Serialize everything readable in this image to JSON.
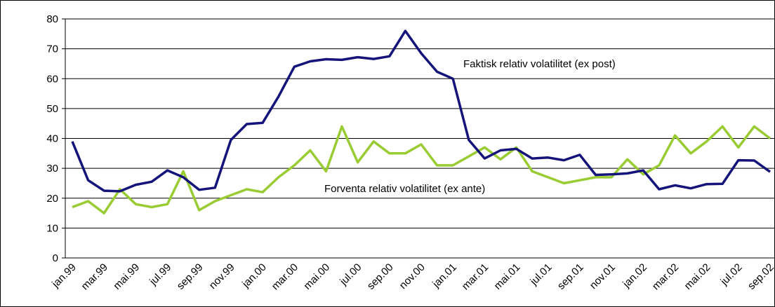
{
  "chart_data": {
    "type": "line",
    "categories": [
      "jan.99",
      null,
      "mar.99",
      null,
      "mai.99",
      null,
      "jul.99",
      null,
      "sep.99",
      null,
      "nov.99",
      null,
      "jan.00",
      null,
      "mar.00",
      null,
      "mai.00",
      null,
      "jul.00",
      null,
      "sep.00",
      null,
      "nov.00",
      null,
      "jan.01",
      null,
      "mar.01",
      null,
      "mai.01",
      null,
      "jul.01",
      null,
      "sep.01",
      null,
      "nov.01",
      null,
      "jan.02",
      null,
      "mar.02",
      null,
      "mai.02",
      null,
      "jul.02",
      null,
      "sep.02"
    ],
    "series": [
      {
        "color": "#14147a",
        "values": [
          39,
          26,
          22.5,
          22.3,
          24.5,
          25.5,
          29.3,
          27,
          22.8,
          23.5,
          39.5,
          44.8,
          45.2,
          54,
          64,
          65.8,
          66.5,
          66.3,
          67.2,
          66.6,
          67.5,
          76,
          68.5,
          62.3,
          60,
          39.5,
          33.3,
          36,
          36.5,
          33.3,
          33.6,
          32.7,
          34.5,
          27.8,
          28,
          28.3,
          29.3,
          23,
          24.3,
          23.3,
          24.7,
          24.8,
          32.7,
          32.6,
          28.8
        ]
      },
      {
        "color": "#99cc33",
        "values": [
          17,
          19,
          15,
          23,
          18,
          17,
          18,
          29,
          16,
          19,
          21,
          23,
          22,
          27,
          31,
          36,
          29,
          44,
          32,
          39,
          35,
          35,
          38,
          31,
          31,
          34,
          37,
          33,
          37,
          29,
          27,
          25,
          26,
          27,
          27,
          33,
          28,
          31,
          41,
          35,
          39,
          44,
          37,
          44,
          40
        ]
      }
    ],
    "annotations": [
      "Faktisk relativ volatilitet (ex post)",
      "Forventa relativ volatilitet (ex ante)"
    ],
    "ylim": [
      0,
      80
    ],
    "yticks": [
      0,
      10,
      20,
      30,
      40,
      50,
      60,
      70,
      80
    ],
    "grid": true
  }
}
